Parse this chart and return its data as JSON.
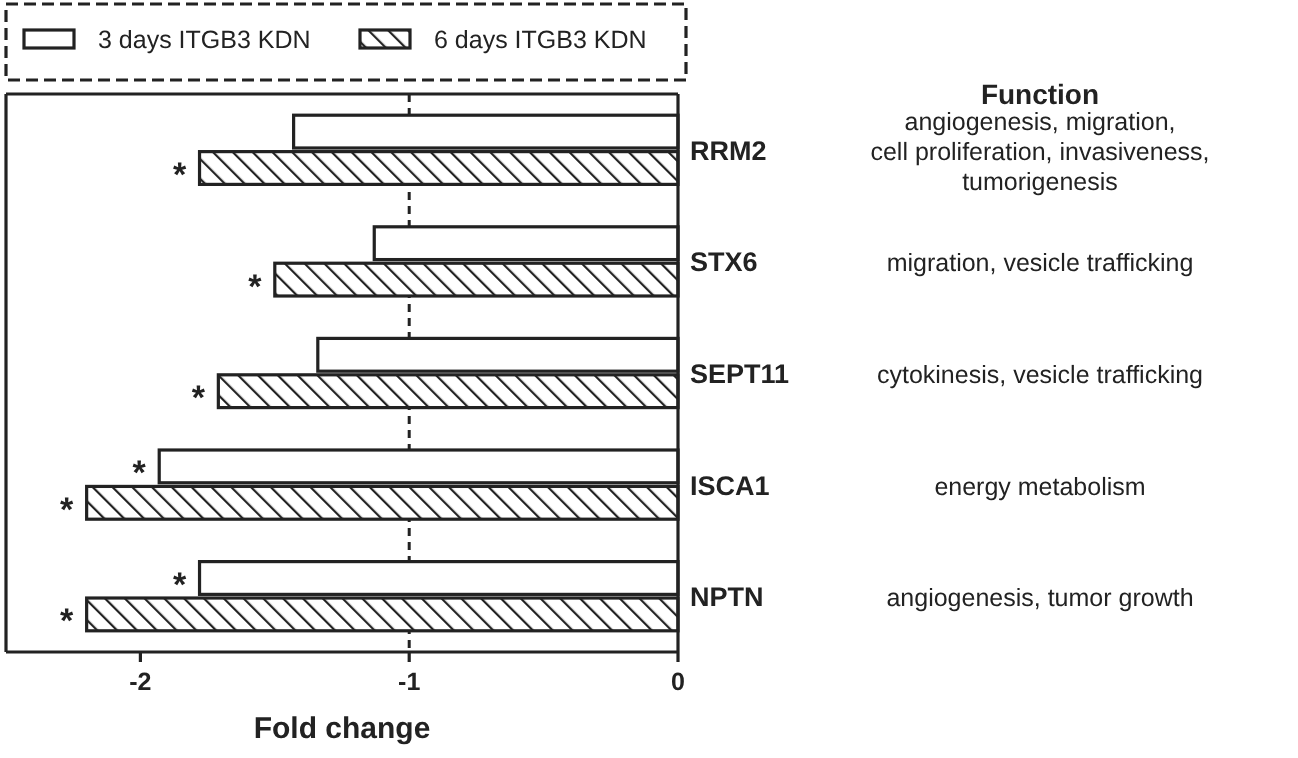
{
  "chart_data": {
    "type": "bar",
    "orientation": "horizontal",
    "xlabel": "Fold change",
    "categories": [
      "RRM2",
      "STX6",
      "SEPT11",
      "ISCA1",
      "NPTN"
    ],
    "series": [
      {
        "name": "3 days ITGB3 KDN",
        "color": "#ffffff",
        "values": [
          -1.43,
          -1.13,
          -1.34,
          -1.93,
          -1.78
        ]
      },
      {
        "name": "6 days ITGB3 KDN",
        "color": "#222222",
        "values": [
          -1.78,
          -1.5,
          -1.71,
          -2.2,
          -2.2
        ]
      }
    ],
    "xlim": [
      -2.5,
      0
    ],
    "xticks": [
      -2,
      -1,
      0
    ],
    "ref_lines": [
      {
        "axis": "x",
        "value": -1,
        "line_style": "dashed"
      }
    ],
    "legend": "top",
    "annotations": [
      {
        "text": "*",
        "x": -1.78,
        "y": "RRM2"
      },
      {
        "text": "*",
        "x": -1.5,
        "y": "STX6"
      },
      {
        "text": "*",
        "x": -1.71,
        "y": "SEPT11"
      },
      {
        "text": "*",
        "x": -1.93,
        "y": "ISCA1"
      },
      {
        "text": "*",
        "x": -2.2,
        "y": "ISCA1"
      },
      {
        "text": "*",
        "x": -1.78,
        "y": "NPTN"
      },
      {
        "text": "*",
        "x": -2.2,
        "y": "NPTN"
      },
      "Function",
      "angiogenesis, migration, cell proliferation, invasiveness, tumorigenesis",
      "migration, vesicle trafficking",
      "cytokinesis, vesicle trafficking",
      "energy metabolism",
      "angiogenesis, tumor growth"
    ]
  }
}
